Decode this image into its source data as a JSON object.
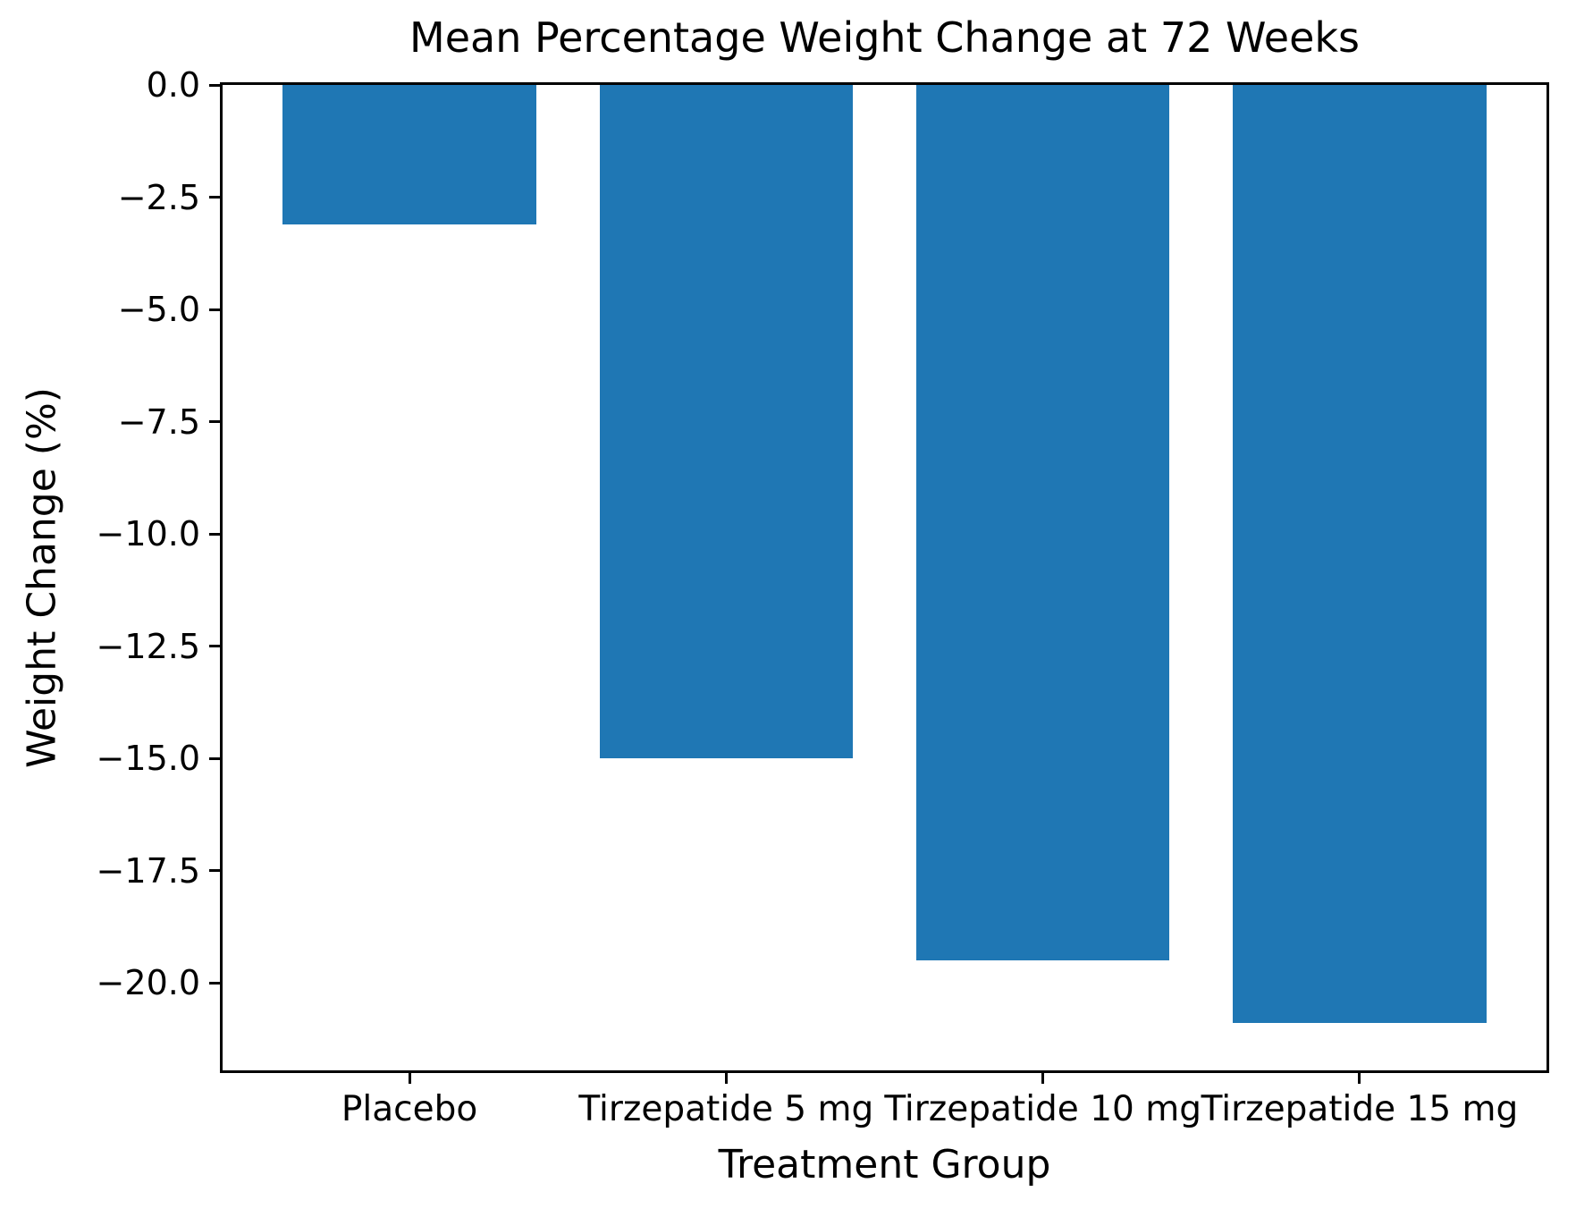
{
  "chart_data": {
    "type": "bar",
    "title": "Mean Percentage Weight Change at 72 Weeks",
    "xlabel": "Treatment Group",
    "ylabel": "Weight Change (%)",
    "categories": [
      "Placebo",
      "Tirzepatide 5 mg",
      "Tirzepatide 10 mg",
      "Tirzepatide 15 mg"
    ],
    "values": [
      -3.1,
      -15.0,
      -19.5,
      -20.9
    ],
    "ylim": [
      -21.95,
      0
    ],
    "yticks": [
      0,
      -2.5,
      -5.0,
      -7.5,
      -10.0,
      -12.5,
      -15.0,
      -17.5,
      -20.0
    ],
    "ytick_labels": [
      "0.0",
      "−2.5",
      "−5.0",
      "−7.5",
      "−10.0",
      "−12.5",
      "−15.0",
      "−17.5",
      "−20.0"
    ],
    "bar_width_fraction": 0.8,
    "x_margin_fraction": 0.59,
    "grid": false,
    "legend_position": "none",
    "colors": {
      "bar": "#1f77b4",
      "spine": "#000000",
      "text": "#000000",
      "background": "#ffffff"
    }
  }
}
